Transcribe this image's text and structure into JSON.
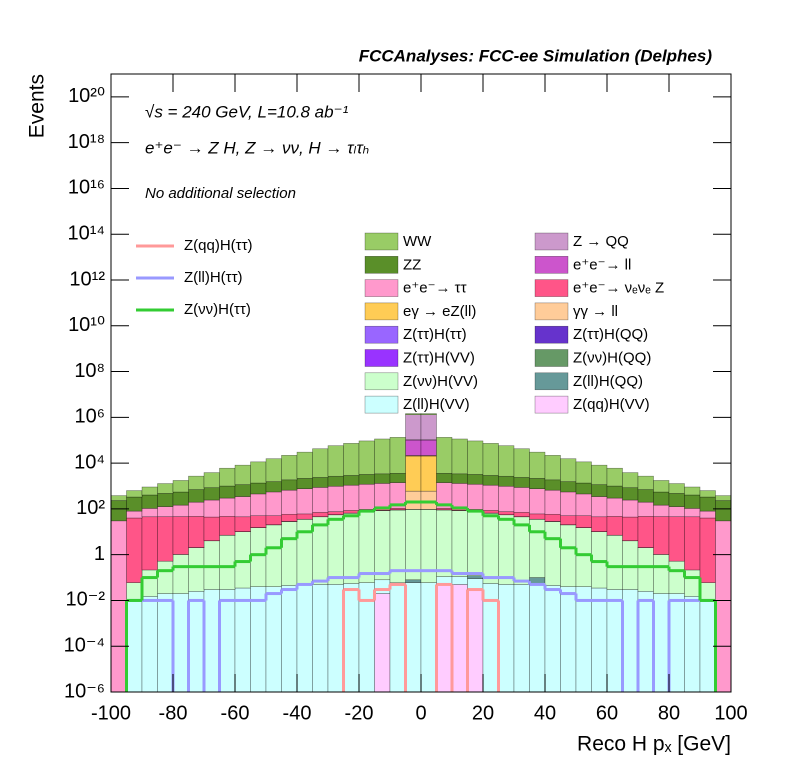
{
  "chart_data": {
    "type": "stacked_histogram",
    "title": "FCCAnalyses: FCC-ee Simulation (Delphes)",
    "x_label": "Reco H pₓ [GeV]",
    "y_label": "Events",
    "annotations": [
      "√s = 240 GeV, L=10.8 ab⁻¹",
      "e⁺e⁻ → Z H, Z → νν, H → τₗτₕ",
      "No additional selection"
    ],
    "logy": true,
    "xlim": [
      -100,
      100
    ],
    "xticks": [
      -100,
      -80,
      -60,
      -40,
      -20,
      0,
      20,
      40,
      60,
      80,
      100
    ],
    "ylim": [
      1e-06,
      1e+21
    ],
    "yticks": [
      {
        "value": 1e-06,
        "label": "10⁻⁶"
      },
      {
        "value": 0.0001,
        "label": "10⁻⁴"
      },
      {
        "value": 0.01,
        "label": "10⁻²"
      },
      1,
      {
        "value": 100,
        "label": "10²"
      },
      {
        "value": 10000.0,
        "label": "10⁴"
      },
      {
        "value": 1000000.0,
        "label": "10⁶"
      },
      {
        "value": 100000000.0,
        "label": "10⁸"
      },
      {
        "value": 10000000000.0,
        "label": "10¹⁰"
      },
      {
        "value": 1000000000000.0,
        "label": "10¹²"
      },
      {
        "value": 100000000000000.0,
        "label": "10¹⁴"
      },
      {
        "value": 1e+16,
        "label": "10¹⁶"
      },
      {
        "value": 1e+18,
        "label": "10¹⁸"
      },
      {
        "value": 1e+20,
        "label": "10²⁰"
      }
    ],
    "bins": [
      -100,
      -95,
      -90,
      -85,
      -80,
      -75,
      -70,
      -65,
      -60,
      -55,
      -50,
      -45,
      -40,
      -35,
      -30,
      -25,
      -20,
      -15,
      -10,
      -5,
      0,
      5,
      10,
      15,
      20,
      25,
      30,
      35,
      40,
      45,
      50,
      55,
      60,
      65,
      70,
      75,
      80,
      85,
      90,
      95,
      100
    ],
    "series": [
      {
        "name": "WW",
        "color": "#99cc66",
        "values": [
          150,
          300,
          500,
          800,
          1200,
          2000,
          3000,
          5000,
          7000,
          10000,
          14000,
          20000,
          28000,
          40000,
          55000,
          70000,
          90000,
          110000,
          130000,
          150000,
          150000,
          130000,
          110000,
          90000,
          70000,
          55000,
          40000,
          28000,
          20000,
          14000,
          10000,
          7000,
          5000,
          3000,
          2000,
          1200,
          800,
          500,
          300,
          150
        ]
      },
      {
        "name": "Z → QQ",
        "color": "#cc99cc",
        "values": [
          0,
          0,
          0,
          0,
          0,
          0,
          0,
          0,
          0,
          0,
          0,
          0,
          0,
          0,
          0,
          0,
          0,
          0,
          0,
          1200000,
          1200000,
          0,
          0,
          0,
          0,
          0,
          0,
          0,
          0,
          0,
          0,
          0,
          0,
          0,
          0,
          0,
          0,
          0,
          0,
          0
        ]
      },
      {
        "name": "ZZ",
        "color": "#5a8f29",
        "values": [
          200,
          250,
          300,
          350,
          400,
          500,
          600,
          700,
          800,
          900,
          1000,
          1200,
          1400,
          1500,
          1700,
          1800,
          2000,
          2100,
          2200,
          2300,
          2300,
          2200,
          2100,
          2000,
          1800,
          1700,
          1500,
          1400,
          1200,
          1000,
          900,
          800,
          700,
          600,
          500,
          400,
          350,
          300,
          250,
          200
        ]
      },
      {
        "name": "e⁺e⁻→ ll",
        "color": "#cc55cc",
        "values": [
          0,
          0,
          0,
          0,
          0,
          0,
          0,
          0,
          0,
          0,
          0,
          0,
          0,
          0,
          0,
          0,
          0,
          0,
          0,
          80000,
          80000,
          0,
          0,
          0,
          0,
          0,
          0,
          0,
          0,
          0,
          0,
          0,
          0,
          0,
          0,
          0,
          0,
          0,
          0,
          0
        ]
      },
      {
        "name": "e⁺e⁻→ ττ",
        "color": "#ff99cc",
        "values": [
          30,
          40,
          60,
          80,
          100,
          150,
          200,
          250,
          300,
          400,
          500,
          600,
          700,
          800,
          900,
          1000,
          1100,
          1200,
          1300,
          1400,
          1400,
          1300,
          1200,
          1100,
          1000,
          900,
          800,
          700,
          600,
          500,
          400,
          300,
          250,
          200,
          150,
          100,
          80,
          60,
          40,
          30
        ]
      },
      {
        "name": "e⁺e⁻→ νₑνₑ Z",
        "color": "#ff5588",
        "values": [
          0,
          40,
          45,
          45,
          45,
          45,
          40,
          40,
          35,
          35,
          30,
          30,
          25,
          25,
          20,
          20,
          20,
          15,
          15,
          15,
          15,
          15,
          15,
          20,
          20,
          20,
          25,
          25,
          30,
          30,
          35,
          35,
          40,
          40,
          45,
          45,
          45,
          45,
          40,
          0
        ]
      },
      {
        "name": "eγ → eZ(ll)",
        "color": "#ffcc55",
        "values": [
          0,
          0,
          0,
          0,
          0,
          0,
          0,
          0,
          0,
          0,
          0,
          0,
          0,
          0,
          0,
          0,
          0,
          0,
          0,
          20000,
          20000,
          0,
          0,
          0,
          0,
          0,
          0,
          0,
          0,
          0,
          0,
          0,
          0,
          0,
          0,
          0,
          0,
          0,
          0,
          0
        ]
      },
      {
        "name": "γγ → ll",
        "color": "#ffcc99",
        "values": [
          0,
          0,
          0,
          0,
          0,
          0,
          0,
          0,
          0,
          0,
          0,
          0,
          0,
          0,
          0,
          0,
          0,
          0,
          0,
          500,
          500,
          0,
          0,
          0,
          0,
          0,
          0,
          0,
          0,
          0,
          0,
          0,
          0,
          0,
          0,
          0,
          0,
          0,
          0,
          0
        ]
      },
      {
        "name": "Z(ττ)H(ττ)",
        "color": "#9966ff",
        "values": [
          0,
          0,
          0,
          0,
          0,
          0.005,
          0.01,
          0.02,
          0.03,
          0.04,
          0.05,
          0.07,
          0.08,
          0.1,
          0.1,
          0.12,
          0.15,
          0.15,
          0.2,
          0.2,
          0.2,
          0.2,
          0.15,
          0.15,
          0.12,
          0.1,
          0.1,
          0.08,
          0.07,
          0.05,
          0.04,
          0.03,
          0.02,
          0.01,
          0.005,
          0,
          0,
          0,
          0,
          0
        ]
      },
      {
        "name": "Z(ττ)H(QQ)",
        "color": "#6633cc",
        "values": [
          0,
          0,
          0,
          0,
          0,
          0,
          0,
          0,
          0.01,
          0.02,
          0.03,
          0.05,
          0.05,
          0.08,
          0.1,
          0.1,
          0.12,
          0.15,
          0.15,
          0.2,
          0.2,
          0.15,
          0.15,
          0.12,
          0.1,
          0.1,
          0.08,
          0.05,
          0.05,
          0.03,
          0.02,
          0.01,
          0,
          0,
          0,
          0,
          0,
          0,
          0,
          0
        ]
      },
      {
        "name": "Z(ττ)H(VV)",
        "color": "#9933ff",
        "values": [
          0,
          0,
          0,
          0,
          0.005,
          0.01,
          0.02,
          0.05,
          0.08,
          0.1,
          0.15,
          0.2,
          0.25,
          0.3,
          0.35,
          0.4,
          0.45,
          0.5,
          0.5,
          0.5,
          0.5,
          0.5,
          0.5,
          0.45,
          0.4,
          0.35,
          0.3,
          0.25,
          0.2,
          0.15,
          0.1,
          0.08,
          0.05,
          0.02,
          0.01,
          0.005,
          0,
          0,
          0,
          0
        ]
      },
      {
        "name": "Z(νν)H(QQ)",
        "color": "#669966",
        "values": [
          0,
          0,
          0,
          0,
          0,
          0,
          0,
          0,
          0,
          0,
          0,
          0,
          0,
          0,
          0.2,
          0,
          0,
          0.3,
          0.3,
          0,
          0,
          0,
          0.2,
          0,
          0.1,
          0,
          0.1,
          0,
          0,
          0,
          0,
          0,
          0,
          0,
          0,
          0,
          0,
          0,
          0,
          0
        ]
      },
      {
        "name": "Z(νν)H(VV)",
        "color": "#ccffcc",
        "values": [
          0,
          0.05,
          0.2,
          0.5,
          1,
          2,
          4,
          7,
          10,
          15,
          20,
          28,
          35,
          45,
          55,
          65,
          75,
          85,
          90,
          95,
          95,
          90,
          85,
          75,
          65,
          55,
          45,
          35,
          28,
          20,
          15,
          10,
          7,
          4,
          2,
          1,
          0.5,
          0.2,
          0.05,
          0
        ]
      },
      {
        "name": "Z(ll)H(QQ)",
        "color": "#669999",
        "values": [
          0,
          0,
          0,
          0,
          0,
          0,
          0,
          0,
          0,
          0,
          0,
          0,
          0,
          0,
          0,
          0,
          0,
          0,
          0,
          0.02,
          0,
          0,
          0,
          0.03,
          0,
          0,
          0,
          0.05,
          0,
          0,
          0,
          0,
          0,
          0,
          0,
          0,
          0,
          0,
          0,
          0
        ]
      },
      {
        "name": "Z(ll)H(VV)",
        "color": "#ccffff",
        "values": [
          0,
          0.01,
          0.015,
          0.02,
          0.02,
          0.025,
          0.03,
          0.03,
          0.035,
          0.04,
          0.04,
          0.045,
          0.05,
          0.05,
          0.05,
          0.055,
          0.06,
          0.06,
          0.06,
          0.06,
          0.06,
          0.06,
          0.06,
          0.06,
          0.055,
          0.05,
          0.05,
          0.05,
          0.045,
          0.04,
          0.04,
          0.035,
          0.03,
          0.03,
          0.025,
          0.02,
          0.02,
          0.015,
          0.01,
          0
        ]
      },
      {
        "name": "Z(qq)H(VV)",
        "color": "#ffccff",
        "values": [
          0,
          0,
          0,
          0,
          0,
          0,
          0,
          0,
          0,
          0,
          0,
          0,
          0,
          0,
          0,
          0,
          0,
          0.02,
          0,
          0,
          0,
          0.05,
          0.05,
          0.03,
          0,
          0,
          0,
          0,
          0,
          0,
          0,
          0,
          0,
          0,
          0,
          0,
          0,
          0,
          0,
          0
        ]
      }
    ],
    "line_series": [
      {
        "name": "Z(qq)H(ττ)",
        "color": "#ff9999",
        "values": [
          0,
          0,
          0,
          0,
          0,
          0,
          0,
          0,
          0,
          0,
          0,
          0,
          0,
          0,
          0,
          0.03,
          0.01,
          0.03,
          0.05,
          0,
          0,
          0.05,
          0,
          0.03,
          0.01,
          0,
          0,
          0,
          0,
          0,
          0,
          0,
          0,
          0,
          0,
          0,
          0,
          0,
          0,
          0
        ]
      },
      {
        "name": "Z(ll)H(ττ)",
        "color": "#9999ff",
        "values": [
          0,
          0.01,
          0.01,
          0.01,
          0,
          0.01,
          0,
          0.01,
          0.01,
          0.01,
          0.02,
          0.03,
          0.05,
          0.07,
          0.1,
          0.1,
          0.15,
          0.15,
          0.2,
          0.2,
          0.2,
          0.2,
          0.15,
          0.15,
          0.1,
          0.1,
          0.07,
          0.05,
          0.03,
          0.02,
          0.01,
          0.01,
          0.01,
          0,
          0.01,
          0,
          0.01,
          0.01,
          0.01,
          0
        ]
      },
      {
        "name": "Z(νν)H(ττ)",
        "color": "#33cc33",
        "values": [
          0,
          0.01,
          0.1,
          0.2,
          0.3,
          0.3,
          0.3,
          0.3,
          0.5,
          1,
          2,
          5,
          10,
          20,
          35,
          50,
          80,
          110,
          150,
          200,
          200,
          150,
          110,
          80,
          50,
          35,
          20,
          10,
          5,
          2,
          1,
          0.5,
          0.3,
          0.3,
          0.3,
          0.3,
          0.2,
          0.1,
          0.01,
          0
        ]
      }
    ]
  }
}
